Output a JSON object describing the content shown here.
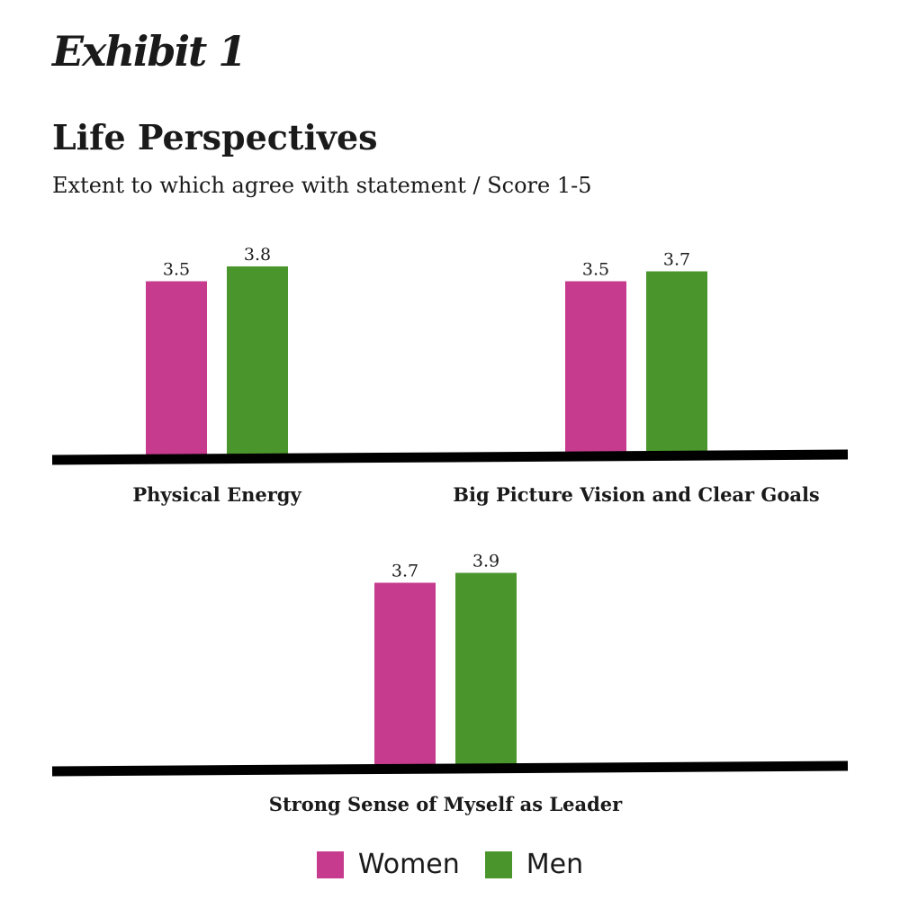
{
  "exhibit_label": "Exhibit 1",
  "chart_data": {
    "type": "bar",
    "title": "Life Perspectives",
    "subtitle": "Extent to which agree with statement / Score 1-5",
    "categories": [
      "Physical Energy",
      "Big Picture Vision and Clear Goals",
      "Strong Sense of Myself as Leader"
    ],
    "series": [
      {
        "name": "Women",
        "color": "#c63b8e",
        "values": [
          3.5,
          3.5,
          3.7
        ]
      },
      {
        "name": "Men",
        "color": "#4a962c",
        "values": [
          3.8,
          3.7,
          3.9
        ]
      }
    ],
    "ylim": [
      0,
      5
    ],
    "grid": false,
    "legend_position": "bottom-center"
  }
}
